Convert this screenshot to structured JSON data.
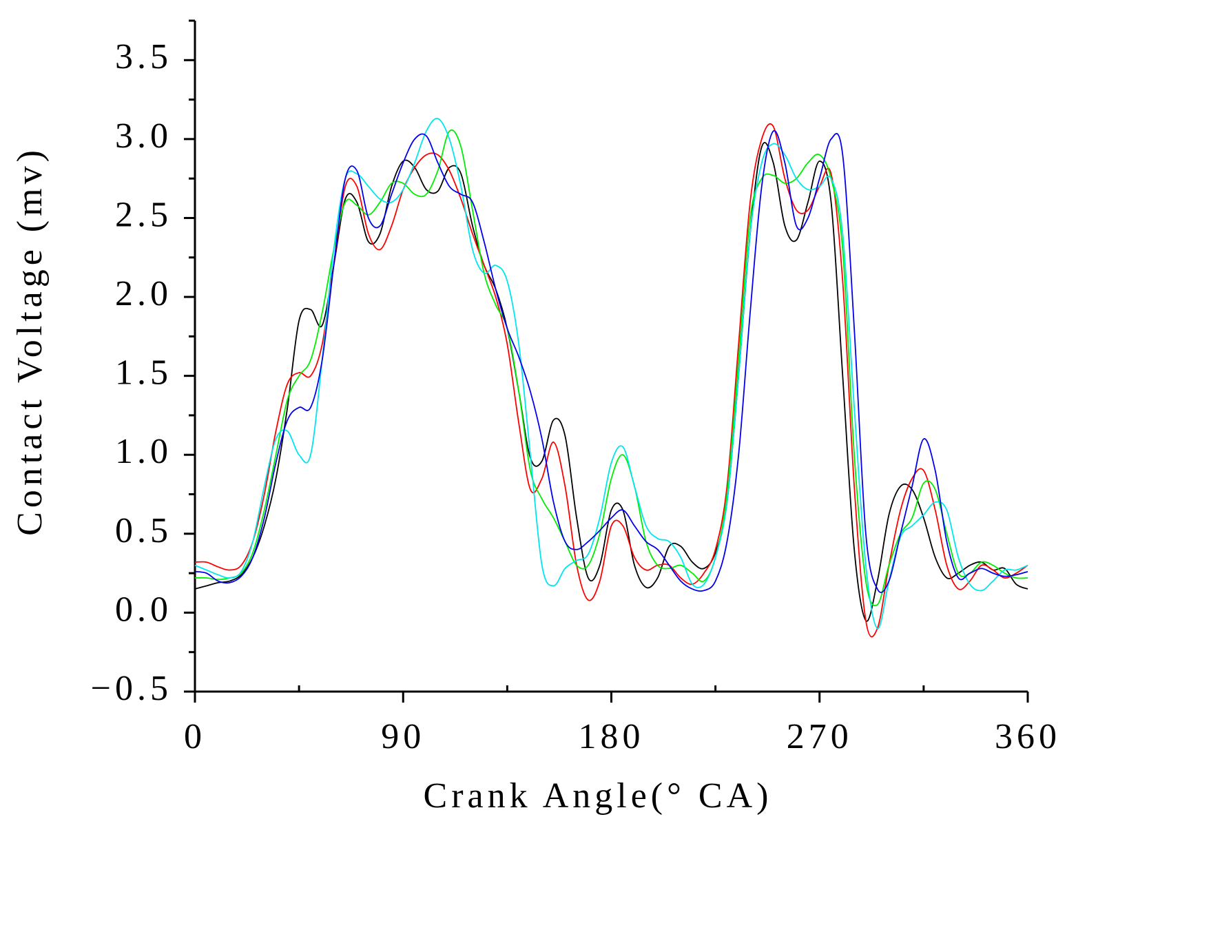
{
  "chart_data": {
    "type": "line",
    "x_label": "Crank Angle(° CA)",
    "y_label": "Contact Voltage (mv)",
    "x": [
      0,
      5,
      10,
      15,
      20,
      25,
      30,
      35,
      40,
      45,
      50,
      55,
      60,
      65,
      70,
      75,
      80,
      85,
      90,
      95,
      100,
      105,
      110,
      115,
      120,
      125,
      130,
      135,
      140,
      145,
      150,
      155,
      160,
      165,
      170,
      175,
      180,
      185,
      190,
      195,
      200,
      205,
      210,
      215,
      220,
      225,
      230,
      235,
      240,
      245,
      250,
      255,
      260,
      265,
      270,
      275,
      280,
      285,
      290,
      295,
      300,
      305,
      310,
      315,
      320,
      325,
      330,
      335,
      340,
      345,
      350,
      355,
      360
    ],
    "series": [
      {
        "color": "#000000",
        "values": [
          0.15,
          0.17,
          0.19,
          0.2,
          0.24,
          0.35,
          0.55,
          0.85,
          1.3,
          1.85,
          1.92,
          1.82,
          2.2,
          2.62,
          2.6,
          2.35,
          2.4,
          2.7,
          2.86,
          2.82,
          2.68,
          2.67,
          2.82,
          2.78,
          2.45,
          2.2,
          2.05,
          1.8,
          1.4,
          0.98,
          0.96,
          1.22,
          1.12,
          0.6,
          0.22,
          0.3,
          0.65,
          0.65,
          0.3,
          0.16,
          0.22,
          0.42,
          0.42,
          0.32,
          0.28,
          0.38,
          0.7,
          1.5,
          2.4,
          2.95,
          2.85,
          2.45,
          2.36,
          2.6,
          2.86,
          2.6,
          1.5,
          0.4,
          -0.05,
          0.2,
          0.62,
          0.8,
          0.78,
          0.6,
          0.35,
          0.22,
          0.25,
          0.3,
          0.32,
          0.27,
          0.28,
          0.18,
          0.15
        ]
      },
      {
        "color": "#ff0000",
        "values": [
          0.32,
          0.32,
          0.29,
          0.27,
          0.3,
          0.45,
          0.75,
          1.15,
          1.45,
          1.52,
          1.5,
          1.7,
          2.2,
          2.7,
          2.7,
          2.4,
          2.3,
          2.45,
          2.68,
          2.82,
          2.9,
          2.9,
          2.8,
          2.62,
          2.4,
          2.2,
          2.0,
          1.7,
          1.2,
          0.78,
          0.85,
          1.08,
          0.8,
          0.3,
          0.08,
          0.2,
          0.55,
          0.55,
          0.35,
          0.27,
          0.3,
          0.3,
          0.22,
          0.18,
          0.25,
          0.4,
          0.8,
          1.7,
          2.6,
          3.0,
          3.08,
          2.75,
          2.55,
          2.55,
          2.7,
          2.78,
          2.1,
          0.8,
          -0.05,
          -0.1,
          0.3,
          0.65,
          0.85,
          0.9,
          0.65,
          0.3,
          0.15,
          0.2,
          0.3,
          0.27,
          0.22,
          0.25,
          0.3
        ]
      },
      {
        "color": "#00ee00",
        "values": [
          0.22,
          0.22,
          0.21,
          0.22,
          0.25,
          0.38,
          0.65,
          1.0,
          1.35,
          1.5,
          1.6,
          1.9,
          2.3,
          2.6,
          2.58,
          2.52,
          2.6,
          2.72,
          2.72,
          2.65,
          2.65,
          2.8,
          3.05,
          2.95,
          2.55,
          2.15,
          1.95,
          1.8,
          1.4,
          0.9,
          0.72,
          0.6,
          0.45,
          0.3,
          0.3,
          0.5,
          0.85,
          1.0,
          0.8,
          0.45,
          0.3,
          0.28,
          0.3,
          0.25,
          0.2,
          0.35,
          0.75,
          1.6,
          2.5,
          2.75,
          2.77,
          2.72,
          2.75,
          2.85,
          2.9,
          2.75,
          2.3,
          1.0,
          0.2,
          0.05,
          0.3,
          0.5,
          0.6,
          0.82,
          0.78,
          0.5,
          0.25,
          0.25,
          0.32,
          0.3,
          0.25,
          0.22,
          0.22
        ]
      },
      {
        "color": "#00e5ee",
        "values": [
          0.3,
          0.27,
          0.24,
          0.22,
          0.26,
          0.45,
          0.8,
          1.1,
          1.15,
          1.0,
          1.0,
          1.6,
          2.3,
          2.75,
          2.78,
          2.7,
          2.62,
          2.6,
          2.68,
          2.85,
          3.05,
          3.13,
          3.0,
          2.7,
          2.3,
          2.15,
          2.2,
          2.1,
          1.7,
          1.0,
          0.3,
          0.17,
          0.28,
          0.33,
          0.37,
          0.6,
          0.95,
          1.05,
          0.8,
          0.55,
          0.47,
          0.45,
          0.35,
          0.18,
          0.18,
          0.35,
          0.7,
          1.5,
          2.4,
          2.85,
          2.97,
          2.9,
          2.75,
          2.68,
          2.7,
          2.75,
          2.4,
          1.3,
          0.3,
          -0.1,
          0.2,
          0.48,
          0.55,
          0.62,
          0.7,
          0.65,
          0.35,
          0.18,
          0.14,
          0.2,
          0.27,
          0.27,
          0.3
        ]
      },
      {
        "color": "#0000ee",
        "values": [
          0.26,
          0.25,
          0.2,
          0.19,
          0.23,
          0.35,
          0.6,
          0.95,
          1.22,
          1.3,
          1.3,
          1.6,
          2.2,
          2.75,
          2.8,
          2.5,
          2.45,
          2.65,
          2.85,
          3.0,
          3.02,
          2.85,
          2.7,
          2.65,
          2.6,
          2.35,
          2.05,
          1.8,
          1.62,
          1.4,
          1.1,
          0.7,
          0.45,
          0.4,
          0.45,
          0.52,
          0.6,
          0.65,
          0.55,
          0.45,
          0.4,
          0.3,
          0.2,
          0.15,
          0.14,
          0.2,
          0.45,
          1.0,
          1.9,
          2.7,
          3.05,
          2.85,
          2.45,
          2.5,
          2.75,
          3.0,
          2.9,
          1.8,
          0.5,
          0.15,
          0.2,
          0.5,
          0.8,
          1.1,
          0.9,
          0.45,
          0.22,
          0.25,
          0.28,
          0.25,
          0.23,
          0.24,
          0.26
        ]
      }
    ],
    "xlim": [
      0,
      360
    ],
    "xticks": [
      0,
      90,
      180,
      270,
      360
    ],
    "xminorticks": [
      45,
      135,
      225,
      315
    ],
    "ylim": [
      -0.5,
      3.75
    ],
    "yticks": [
      {
        "value": -0.5,
        "label": "−0.5"
      },
      {
        "value": 0,
        "label": "0.0"
      },
      0.5,
      {
        "value": 1,
        "label": "1.0"
      },
      1.5,
      {
        "value": 2,
        "label": "2.0"
      },
      2.5,
      {
        "value": 3,
        "label": "3.0"
      },
      3.5
    ],
    "yminorticks": [
      -0.25,
      0.25,
      0.75,
      1.25,
      1.75,
      2.25,
      2.75,
      3.25,
      3.75
    ]
  }
}
